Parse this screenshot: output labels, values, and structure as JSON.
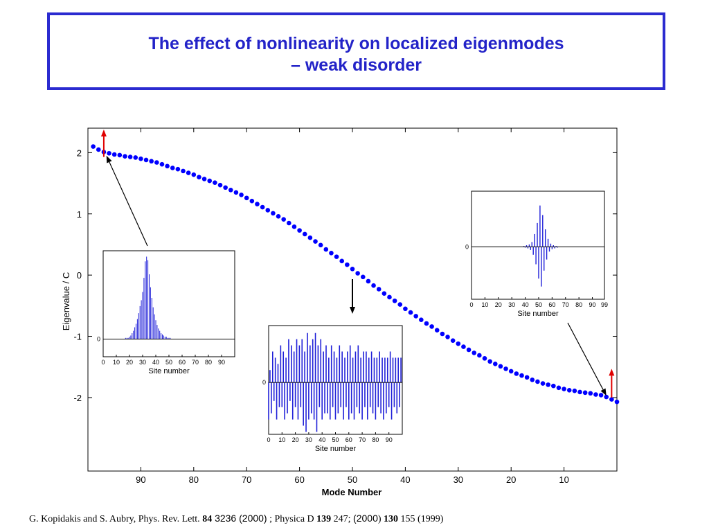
{
  "slide": {
    "title_line1": "The effect of nonlinearity on localized eigenmodes",
    "title_line2": "– weak disorder"
  },
  "citation": {
    "authors": "G. Kopidakis and S. Aubry, Phys. Rev. Lett. ",
    "vol1": "84",
    "page1": " 3236",
    "year1": " (2000)",
    "mid": " ; Physica D ",
    "vol2": "139",
    "page2": " 247; ",
    "year2": " (2000",
    "paren": ") ",
    "vol3": "130",
    "tail": " 155 (1999)"
  },
  "colors": {
    "accent": "#2323c8",
    "markers": "#0000ff",
    "stem": "#1f1fd8",
    "indicator": "#e00000"
  },
  "chart_data": [
    {
      "type": "scatter",
      "title": "",
      "xlabel": "Mode Number",
      "ylabel": "Eigenvalue / C",
      "x_ticks": [
        "90",
        "80",
        "70",
        "60",
        "50",
        "40",
        "30",
        "20",
        "10"
      ],
      "y_ticks": [
        "2",
        "1",
        "0",
        "-1",
        "-2"
      ],
      "xlim": [
        100,
        0
      ],
      "ylim": [
        -3.2,
        2.4
      ],
      "x_reversed": true,
      "series": [
        {
          "marker": "filled-circle",
          "x": [
            99,
            98,
            97,
            96,
            95,
            94,
            93,
            92,
            91,
            90,
            89,
            88,
            87,
            86,
            85,
            84,
            83,
            82,
            81,
            80,
            79,
            78,
            77,
            76,
            75,
            74,
            73,
            72,
            71,
            70,
            69,
            68,
            67,
            66,
            65,
            64,
            63,
            62,
            61,
            60,
            59,
            58,
            57,
            56,
            55,
            54,
            53,
            52,
            51,
            50,
            49,
            48,
            47,
            46,
            45,
            44,
            43,
            42,
            41,
            40,
            39,
            38,
            37,
            36,
            35,
            34,
            33,
            32,
            31,
            30,
            29,
            28,
            27,
            26,
            25,
            24,
            23,
            22,
            21,
            20,
            19,
            18,
            17,
            16,
            15,
            14,
            13,
            12,
            11,
            10,
            9,
            8,
            7,
            6,
            5,
            4,
            3,
            2,
            1,
            0
          ],
          "y": [
            2.1,
            2.05,
            2.01,
            1.99,
            1.97,
            1.96,
            1.94,
            1.93,
            1.92,
            1.9,
            1.88,
            1.86,
            1.84,
            1.81,
            1.78,
            1.75,
            1.73,
            1.7,
            1.67,
            1.64,
            1.6,
            1.57,
            1.54,
            1.51,
            1.47,
            1.43,
            1.39,
            1.35,
            1.31,
            1.26,
            1.21,
            1.16,
            1.11,
            1.06,
            1.01,
            0.96,
            0.91,
            0.85,
            0.79,
            0.73,
            0.67,
            0.61,
            0.55,
            0.49,
            0.42,
            0.36,
            0.3,
            0.23,
            0.17,
            0.1,
            0.03,
            -0.03,
            -0.1,
            -0.17,
            -0.23,
            -0.3,
            -0.36,
            -0.42,
            -0.48,
            -0.55,
            -0.61,
            -0.67,
            -0.73,
            -0.79,
            -0.84,
            -0.9,
            -0.96,
            -1.01,
            -1.07,
            -1.12,
            -1.17,
            -1.22,
            -1.27,
            -1.31,
            -1.36,
            -1.41,
            -1.45,
            -1.49,
            -1.53,
            -1.57,
            -1.61,
            -1.64,
            -1.67,
            -1.71,
            -1.74,
            -1.77,
            -1.79,
            -1.81,
            -1.84,
            -1.86,
            -1.88,
            -1.89,
            -1.91,
            -1.92,
            -1.93,
            -1.95,
            -1.96,
            -1.99,
            -2.03,
            -2.07
          ]
        }
      ],
      "annotations": [
        {
          "type": "red-up-arrow",
          "at_mode": 97
        },
        {
          "type": "red-up-arrow",
          "at_mode": 1
        },
        {
          "type": "black-arrow",
          "points_to_mode": 97,
          "from": "left-inset"
        },
        {
          "type": "black-arrow",
          "points_to_mode": 50,
          "from": "middle-inset"
        },
        {
          "type": "black-arrow",
          "points_to_mode": 2,
          "from": "right-inset"
        }
      ]
    },
    {
      "type": "bar",
      "title": "",
      "xlabel": "Site number",
      "x_ticks": [
        "0",
        "10",
        "20",
        "30",
        "40",
        "50",
        "60",
        "70",
        "80",
        "90"
      ],
      "y_ticks": [
        "0"
      ],
      "xlim": [
        0,
        100
      ],
      "ylim": [
        -0.15,
        0.75
      ],
      "values": [
        0,
        0,
        0,
        0,
        0,
        0,
        0,
        0,
        0,
        0,
        0,
        0,
        0,
        0,
        0,
        0,
        0,
        0.01,
        0.01,
        0.01,
        0.02,
        0.03,
        0.05,
        0.07,
        0.1,
        0.13,
        0.17,
        0.22,
        0.28,
        0.33,
        0.4,
        0.52,
        0.66,
        0.7,
        0.67,
        0.55,
        0.44,
        0.35,
        0.27,
        0.21,
        0.16,
        0.12,
        0.09,
        0.07,
        0.05,
        0.04,
        0.03,
        0.02,
        0.02,
        0.01,
        0.01,
        0.01,
        0,
        0,
        0,
        0,
        0,
        0,
        0,
        0,
        0,
        0,
        0,
        0,
        0,
        0,
        0,
        0,
        0,
        0,
        0,
        0,
        0,
        0,
        0,
        0,
        0,
        0,
        0,
        0,
        0,
        0,
        0,
        0,
        0,
        0,
        0,
        0,
        0,
        0,
        0,
        0,
        0,
        0,
        0,
        0,
        0,
        0,
        0,
        0
      ]
    },
    {
      "type": "bar",
      "title": "",
      "xlabel": "Site number",
      "x_ticks": [
        "0",
        "10",
        "20",
        "30",
        "40",
        "50",
        "60",
        "70",
        "80",
        "90"
      ],
      "y_ticks": [
        "0"
      ],
      "xlim": [
        0,
        100
      ],
      "ylim": [
        -0.42,
        0.46
      ],
      "values": [
        -0.3,
        0.1,
        -0.25,
        0.25,
        -0.15,
        0.2,
        -0.3,
        0.15,
        -0.2,
        0.3,
        -0.2,
        0.25,
        -0.3,
        0.2,
        -0.25,
        0.35,
        -0.15,
        0.3,
        -0.3,
        0.25,
        -0.2,
        0.35,
        -0.3,
        0.3,
        -0.2,
        0.35,
        -0.35,
        0.25,
        -0.4,
        0.4,
        -0.3,
        0.3,
        -0.25,
        0.35,
        -0.3,
        0.4,
        -0.4,
        0.3,
        -0.2,
        0.35,
        -0.3,
        0.25,
        -0.25,
        0.3,
        -0.25,
        0.2,
        -0.3,
        0.3,
        -0.2,
        0.25,
        -0.3,
        0.2,
        -0.25,
        0.3,
        -0.2,
        0.25,
        -0.3,
        0.2,
        -0.2,
        0.25,
        -0.3,
        0.3,
        -0.25,
        0.2,
        -0.3,
        0.25,
        -0.2,
        0.3,
        -0.25,
        0.2,
        -0.3,
        0.25,
        -0.2,
        0.25,
        -0.3,
        0.2,
        -0.2,
        0.25,
        -0.25,
        0.2,
        -0.3,
        0.2,
        -0.2,
        0.25,
        -0.25,
        0.2,
        -0.3,
        0.2,
        -0.25,
        0.2,
        -0.2,
        0.25,
        -0.3,
        0.2,
        -0.2,
        0.2,
        -0.25,
        0.2,
        -0.2,
        0.2
      ]
    },
    {
      "type": "bar",
      "title": "",
      "xlabel": "Site number",
      "x_ticks": [
        "0",
        "10",
        "20",
        "30",
        "40",
        "50",
        "60",
        "70",
        "80",
        "90",
        "99"
      ],
      "y_ticks": [
        "0"
      ],
      "xlim": [
        0,
        99
      ],
      "ylim": [
        -0.33,
        0.35
      ],
      "values": [
        0,
        0,
        0,
        0,
        0,
        0,
        0,
        0,
        0,
        0,
        0,
        0,
        0,
        0,
        0,
        0,
        0,
        0,
        0,
        0,
        0,
        0,
        0,
        0,
        0,
        0,
        0,
        0,
        0,
        0,
        0,
        0,
        0,
        0,
        0,
        0,
        0,
        0,
        0,
        0.005,
        -0.005,
        0.01,
        -0.01,
        0.015,
        -0.02,
        0.03,
        -0.05,
        0.08,
        -0.11,
        0.15,
        -0.2,
        0.26,
        -0.25,
        0.2,
        -0.15,
        0.11,
        -0.08,
        0.05,
        -0.03,
        0.02,
        -0.015,
        0.01,
        -0.01,
        0.005,
        -0.005,
        0,
        0,
        0,
        0,
        0,
        0,
        0,
        0,
        0,
        0,
        0,
        0,
        0,
        0,
        0,
        0,
        0,
        0,
        0,
        0,
        0,
        0,
        0,
        0,
        0,
        0,
        0,
        0,
        0,
        0,
        0,
        0,
        0,
        0,
        0
      ]
    }
  ]
}
